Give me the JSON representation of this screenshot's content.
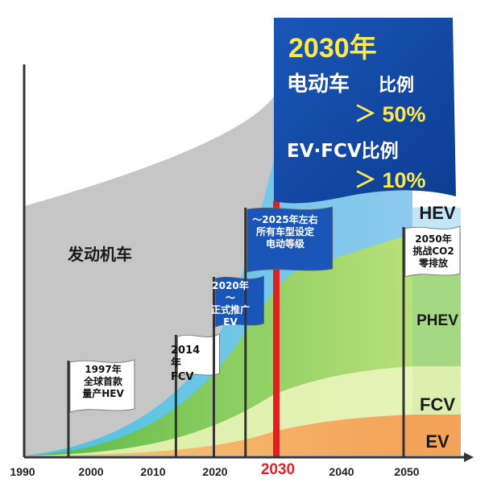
{
  "chart_data": {
    "type": "area",
    "x_ticks": [
      "1990",
      "2000",
      "2010",
      "2020",
      "2030",
      "2040",
      "2050"
    ],
    "highlight_tick": "2030",
    "series": [
      {
        "name": "发动机车",
        "color": "#bdbdbd"
      },
      {
        "name": "HEV",
        "color": "#5ab5e6"
      },
      {
        "name": "PHEV",
        "color": "#7cc855"
      },
      {
        "name": "FCV",
        "color": "#c9e89a"
      },
      {
        "name": "EV",
        "color": "#f2a65a"
      }
    ],
    "milestones": [
      {
        "year": 1997,
        "lines": [
          "1997年",
          "全球首款",
          "量产HEV"
        ],
        "style": "white"
      },
      {
        "year": 2014,
        "lines": [
          "2014年",
          "FCV"
        ],
        "style": "white"
      },
      {
        "year": 2020,
        "lines": [
          "2020年～",
          "正式推广",
          "EV"
        ],
        "style": "blue"
      },
      {
        "year": 2025,
        "lines": [
          "～2025年左右",
          "所有车型设定",
          "电动等级"
        ],
        "style": "blue"
      },
      {
        "year": 2050,
        "lines": [
          "2050年",
          "挑战CO2",
          "零排放"
        ],
        "style": "white"
      }
    ],
    "banner": {
      "title": "2030年",
      "line2_main": "电动车",
      "line2_sub": "比例",
      "value1": "＞ 50%",
      "line3": "EV·FCV比例",
      "value2": "＞ 10%"
    }
  }
}
